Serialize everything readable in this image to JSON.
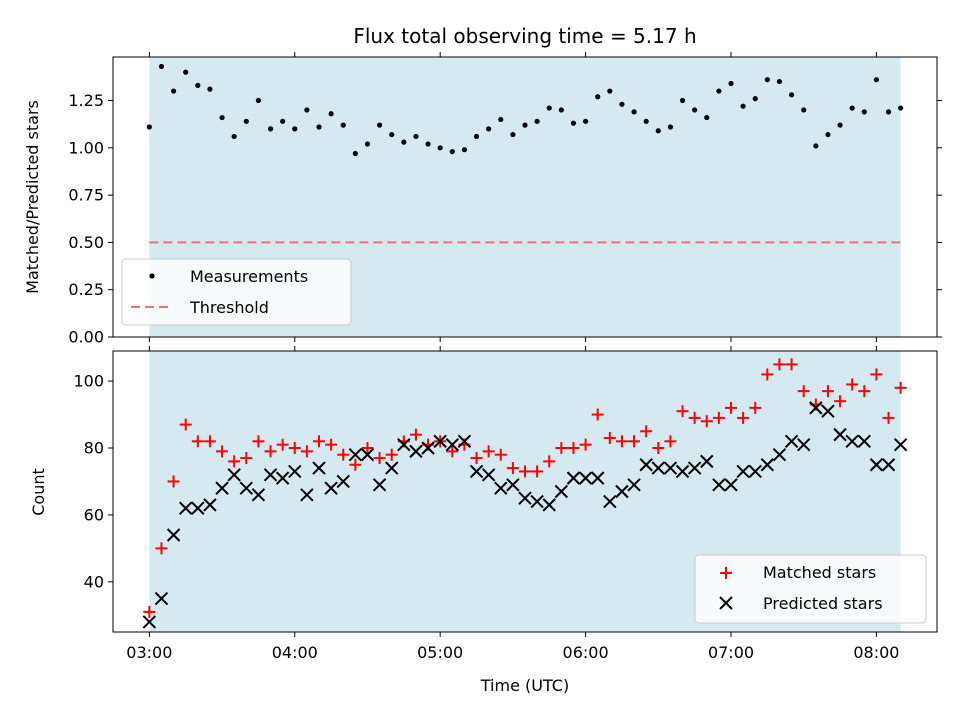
{
  "chart_data": [
    {
      "type": "scatter",
      "title": "Flux total observing time = 5.17 h",
      "ylabel": "Matched/Predicted stars",
      "xlim": [
        "02:45",
        "08:25"
      ],
      "ylim": [
        0,
        1.48
      ],
      "yticks": [
        "0.00",
        "0.25",
        "0.50",
        "0.75",
        "1.00",
        "1.25"
      ],
      "x_tick_marks": [
        "03:00",
        "04:00",
        "05:00",
        "06:00",
        "07:00",
        "08:00"
      ],
      "observing_window": [
        "03:00",
        "08:10"
      ],
      "threshold": 0.5,
      "legend_location": "lower-left",
      "series": [
        {
          "name": "Measurements",
          "marker": "dot",
          "color": "#000000",
          "x": [
            "03:00",
            "03:05",
            "03:10",
            "03:15",
            "03:20",
            "03:25",
            "03:30",
            "03:35",
            "03:40",
            "03:45",
            "03:50",
            "03:55",
            "04:00",
            "04:05",
            "04:10",
            "04:15",
            "04:20",
            "04:25",
            "04:30",
            "04:35",
            "04:40",
            "04:45",
            "04:50",
            "04:55",
            "05:00",
            "05:05",
            "05:10",
            "05:15",
            "05:20",
            "05:25",
            "05:30",
            "05:35",
            "05:40",
            "05:45",
            "05:50",
            "05:55",
            "06:00",
            "06:05",
            "06:10",
            "06:15",
            "06:20",
            "06:25",
            "06:30",
            "06:35",
            "06:40",
            "06:45",
            "06:50",
            "06:55",
            "07:00",
            "07:05",
            "07:10",
            "07:15",
            "07:20",
            "07:25",
            "07:30",
            "07:35",
            "07:40",
            "07:45",
            "07:50",
            "07:55",
            "08:00",
            "08:05",
            "08:10"
          ],
          "y": [
            1.11,
            1.43,
            1.3,
            1.4,
            1.33,
            1.31,
            1.16,
            1.06,
            1.14,
            1.25,
            1.1,
            1.14,
            1.1,
            1.2,
            1.11,
            1.18,
            1.12,
            0.97,
            1.02,
            1.12,
            1.07,
            1.03,
            1.06,
            1.02,
            1.0,
            0.98,
            0.99,
            1.06,
            1.1,
            1.15,
            1.07,
            1.12,
            1.14,
            1.21,
            1.2,
            1.13,
            1.14,
            1.27,
            1.3,
            1.23,
            1.19,
            1.14,
            1.09,
            1.11,
            1.25,
            1.2,
            1.16,
            1.3,
            1.34,
            1.22,
            1.26,
            1.36,
            1.35,
            1.28,
            1.2,
            1.01,
            1.07,
            1.12,
            1.21,
            1.19,
            1.36,
            1.19,
            1.21
          ]
        },
        {
          "name": "Threshold",
          "style": "dashed",
          "color": "#f07070"
        }
      ]
    },
    {
      "type": "scatter",
      "xlabel": "Time (UTC)",
      "ylabel": "Count",
      "xlim": [
        "02:45",
        "08:25"
      ],
      "ylim": [
        25,
        109
      ],
      "yticks": [
        "40",
        "60",
        "80",
        "100"
      ],
      "xticks": [
        "03:00",
        "04:00",
        "05:00",
        "06:00",
        "07:00",
        "08:00"
      ],
      "observing_window": [
        "03:00",
        "08:10"
      ],
      "legend_location": "lower-right",
      "series": [
        {
          "name": "Matched stars",
          "marker": "plus",
          "color": "#ff0000",
          "x": [
            "03:00",
            "03:05",
            "03:10",
            "03:15",
            "03:20",
            "03:25",
            "03:30",
            "03:35",
            "03:40",
            "03:45",
            "03:50",
            "03:55",
            "04:00",
            "04:05",
            "04:10",
            "04:15",
            "04:20",
            "04:25",
            "04:30",
            "04:35",
            "04:40",
            "04:45",
            "04:50",
            "04:55",
            "05:00",
            "05:05",
            "05:10",
            "05:15",
            "05:20",
            "05:25",
            "05:30",
            "05:35",
            "05:40",
            "05:45",
            "05:50",
            "05:55",
            "06:00",
            "06:05",
            "06:10",
            "06:15",
            "06:20",
            "06:25",
            "06:30",
            "06:35",
            "06:40",
            "06:45",
            "06:50",
            "06:55",
            "07:00",
            "07:05",
            "07:10",
            "07:15",
            "07:20",
            "07:25",
            "07:30",
            "07:35",
            "07:40",
            "07:45",
            "07:50",
            "07:55",
            "08:00",
            "08:05",
            "08:10"
          ],
          "y": [
            31,
            50,
            70,
            87,
            82,
            82,
            79,
            76,
            77,
            82,
            79,
            81,
            80,
            79,
            82,
            81,
            78,
            75,
            80,
            77,
            78,
            82,
            84,
            81,
            82,
            79,
            81,
            77,
            79,
            78,
            74,
            73,
            73,
            76,
            80,
            80,
            81,
            90,
            83,
            82,
            82,
            85,
            80,
            82,
            91,
            89,
            88,
            89,
            92,
            89,
            92,
            102,
            105,
            105,
            97,
            93,
            97,
            94,
            99,
            97,
            102,
            89,
            98
          ]
        },
        {
          "name": "Predicted stars",
          "marker": "x",
          "color": "#000000",
          "x": [
            "03:00",
            "03:05",
            "03:10",
            "03:15",
            "03:20",
            "03:25",
            "03:30",
            "03:35",
            "03:40",
            "03:45",
            "03:50",
            "03:55",
            "04:00",
            "04:05",
            "04:10",
            "04:15",
            "04:20",
            "04:25",
            "04:30",
            "04:35",
            "04:40",
            "04:45",
            "04:50",
            "04:55",
            "05:00",
            "05:05",
            "05:10",
            "05:15",
            "05:20",
            "05:25",
            "05:30",
            "05:35",
            "05:40",
            "05:45",
            "05:50",
            "05:55",
            "06:00",
            "06:05",
            "06:10",
            "06:15",
            "06:20",
            "06:25",
            "06:30",
            "06:35",
            "06:40",
            "06:45",
            "06:50",
            "06:55",
            "07:00",
            "07:05",
            "07:10",
            "07:15",
            "07:20",
            "07:25",
            "07:30",
            "07:35",
            "07:40",
            "07:45",
            "07:50",
            "07:55",
            "08:00",
            "08:05",
            "08:10"
          ],
          "y": [
            28,
            35,
            54,
            62,
            62,
            63,
            68,
            72,
            68,
            66,
            72,
            71,
            73,
            66,
            74,
            68,
            70,
            78,
            78,
            69,
            74,
            81,
            79,
            80,
            82,
            81,
            82,
            73,
            72,
            68,
            69,
            65,
            64,
            63,
            67,
            71,
            71,
            71,
            64,
            67,
            69,
            75,
            74,
            74,
            73,
            74,
            76,
            69,
            69,
            73,
            73,
            75,
            78,
            82,
            81,
            92,
            91,
            84,
            82,
            82,
            75,
            75,
            81
          ]
        }
      ]
    }
  ],
  "colors": {
    "observing_window": "#d4eaf0",
    "threshold": "#f07070",
    "matched": "#ff0000",
    "predicted": "#000000",
    "measurements": "#000000"
  }
}
